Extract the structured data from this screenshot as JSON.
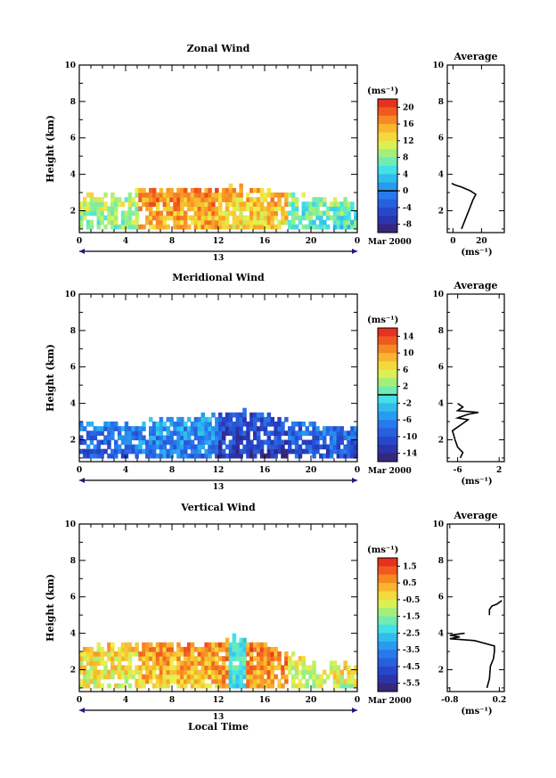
{
  "chart_data": [
    {
      "type": "heatmap",
      "title": "Zonal Wind",
      "ylabel": "Height (km)",
      "xlabel": "",
      "xlim": [
        0,
        24
      ],
      "ylim": [
        0.8,
        10
      ],
      "xticks": [
        "0",
        "4",
        "8",
        "12",
        "16",
        "20",
        "0"
      ],
      "yticks": [
        "2",
        "4",
        "6",
        "8",
        "10"
      ],
      "date_day": "13",
      "date_label": "Mar 2000",
      "colorbar": {
        "unit": "(ms⁻¹)",
        "labels": [
          "20",
          "16",
          "12",
          "8",
          "4",
          "0",
          "-4",
          "-8"
        ],
        "range": [
          -10,
          22
        ],
        "zero_line": 0
      },
      "field": {
        "vmin": -10,
        "vmax": 22,
        "typical_values": {
          "00-05h": 9,
          "05-12h": 16,
          "12-18h": 14,
          "18-24h": 7
        },
        "top_height_km": [
          [
            0,
            2.6
          ],
          [
            2,
            2.7
          ],
          [
            5,
            2.9
          ],
          [
            8,
            3.1
          ],
          [
            12,
            3.0
          ],
          [
            13.6,
            3.3
          ],
          [
            16,
            3.0
          ],
          [
            18,
            2.8
          ],
          [
            20,
            2.6
          ],
          [
            24,
            2.4
          ]
        ],
        "bottom_height_km": 1.0
      },
      "average_profile": {
        "title": "Average",
        "xlabel": "(ms⁻¹)",
        "xticks": [
          "0",
          "20"
        ],
        "yticks": [
          "2",
          "4",
          "6",
          "8",
          "10"
        ],
        "xlim": [
          -4,
          36
        ],
        "ylim": [
          0.8,
          10
        ],
        "points": [
          [
            6,
            1.0
          ],
          [
            8,
            1.4
          ],
          [
            10,
            1.8
          ],
          [
            12,
            2.2
          ],
          [
            14,
            2.6
          ],
          [
            16,
            2.9
          ],
          [
            12,
            3.1
          ],
          [
            6,
            3.3
          ],
          [
            2,
            3.4
          ],
          [
            -1,
            3.5
          ]
        ]
      }
    },
    {
      "type": "heatmap",
      "title": "Meridional Wind",
      "ylabel": "Height (km)",
      "xlabel": "",
      "xlim": [
        0,
        24
      ],
      "ylim": [
        0.8,
        10
      ],
      "xticks": [
        "0",
        "4",
        "8",
        "12",
        "16",
        "20",
        "0"
      ],
      "yticks": [
        "2",
        "4",
        "6",
        "8",
        "10"
      ],
      "date_day": "13",
      "date_label": "Mar 2000",
      "colorbar": {
        "unit": "(ms⁻¹)",
        "labels": [
          "14",
          "10",
          "6",
          "2",
          "-2",
          "-6",
          "-10",
          "-14"
        ],
        "range": [
          -16,
          16
        ],
        "zero_line": 0
      },
      "field": {
        "vmin": -16,
        "vmax": 16,
        "typical_values": {
          "00-05h": -8,
          "05-12h": -6,
          "12-18h": -11,
          "18-24h": -9
        },
        "top_height_km": [
          [
            0,
            2.9
          ],
          [
            3,
            2.8
          ],
          [
            6,
            3.0
          ],
          [
            9,
            3.1
          ],
          [
            12,
            3.2
          ],
          [
            13.6,
            3.5
          ],
          [
            16,
            3.2
          ],
          [
            18,
            2.9
          ],
          [
            21,
            2.6
          ],
          [
            24,
            2.5
          ]
        ],
        "bottom_height_km": 1.0
      },
      "average_profile": {
        "title": "Average",
        "xlabel": "(ms⁻¹)",
        "xticks": [
          "-6",
          "2"
        ],
        "yticks": [
          "2",
          "4",
          "6",
          "8",
          "10"
        ],
        "xlim": [
          -8,
          3
        ],
        "ylim": [
          0.8,
          10
        ],
        "points": [
          [
            -5.5,
            1.0
          ],
          [
            -5,
            1.3
          ],
          [
            -6,
            1.6
          ],
          [
            -6.5,
            2.0
          ],
          [
            -7,
            2.5
          ],
          [
            -5,
            2.9
          ],
          [
            -4,
            3.1
          ],
          [
            -6,
            3.2
          ],
          [
            -4,
            3.4
          ],
          [
            -2,
            3.5
          ],
          [
            -6,
            3.6
          ],
          [
            -5,
            3.8
          ],
          [
            -6,
            4.0
          ]
        ]
      }
    },
    {
      "type": "heatmap",
      "title": "Vertical Wind",
      "ylabel": "Height (km)",
      "xlabel": "Local Time",
      "xlim": [
        0,
        24
      ],
      "ylim": [
        0.8,
        10
      ],
      "xticks": [
        "0",
        "4",
        "8",
        "12",
        "16",
        "20",
        "0"
      ],
      "yticks": [
        "2",
        "4",
        "6",
        "8",
        "10"
      ],
      "date_day": "13",
      "date_label": "Mar 2000",
      "colorbar": {
        "unit": "(ms⁻¹)",
        "labels": [
          "1.5",
          "0.5",
          "-0.5",
          "-1.5",
          "-2.5",
          "-3.5",
          "-4.5",
          "-5.5"
        ],
        "range": [
          -6,
          2
        ],
        "zero_line": null
      },
      "field": {
        "vmin": -6,
        "vmax": 2,
        "typical_values": {
          "00-05h": -0.4,
          "05-12h": 0.3,
          "12-18h": 0.6,
          "18-24h": -0.6
        },
        "top_height_km": [
          [
            0,
            3.3
          ],
          [
            4,
            3.3
          ],
          [
            8,
            3.3
          ],
          [
            12,
            3.4
          ],
          [
            14,
            3.7
          ],
          [
            16,
            3.2
          ],
          [
            18,
            2.7
          ],
          [
            21,
            2.2
          ],
          [
            24,
            2.1
          ]
        ],
        "bottom_height_km": 1.0
      },
      "average_profile": {
        "title": "Average",
        "xlabel": "(ms⁻¹)",
        "xticks": [
          "-0.8",
          "0.2"
        ],
        "yticks": [
          "2",
          "4",
          "6",
          "8",
          "10"
        ],
        "xlim": [
          -0.85,
          0.3
        ],
        "ylim": [
          0.8,
          10
        ],
        "points": [
          [
            -0.05,
            1.0
          ],
          [
            0.0,
            1.5
          ],
          [
            0.02,
            2.2
          ],
          [
            0.08,
            2.6
          ],
          [
            0.1,
            3.0
          ],
          [
            0.1,
            3.3
          ],
          [
            -0.3,
            3.6
          ],
          [
            -0.8,
            3.7
          ],
          [
            -0.6,
            3.8
          ],
          [
            -0.8,
            3.9
          ],
          [
            -0.5,
            4.0
          ],
          null,
          [
            0.0,
            5.0
          ],
          [
            0.0,
            5.3
          ],
          [
            0.05,
            5.5
          ],
          [
            0.15,
            5.6
          ],
          [
            0.25,
            5.8
          ]
        ]
      }
    }
  ]
}
